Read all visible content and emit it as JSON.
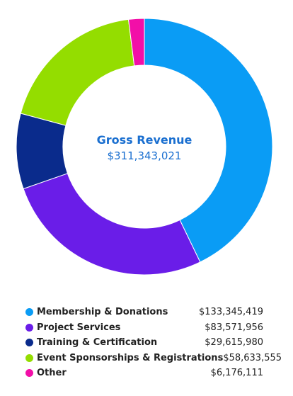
{
  "chart_data": {
    "type": "pie",
    "center": {
      "title": "Gross Revenue",
      "value": "$311,343,021"
    },
    "slices": [
      {
        "label": "Membership & Donations",
        "value": 133345419,
        "display": "$133,345,419",
        "color": "#0a9cf5"
      },
      {
        "label": "Project Services",
        "value": 83571956,
        "display": "$83,571,956",
        "color": "#6a1de8"
      },
      {
        "label": "Training & Certification",
        "value": 29615980,
        "display": "$29,615,980",
        "color": "#0a2b8c"
      },
      {
        "label": "Event Sponsorships & Registrations",
        "value": 58633555,
        "display": "$58,633,555",
        "color": "#94dd00"
      },
      {
        "label": "Other",
        "value": 6176111,
        "display": "$6,176,111",
        "color": "#f20fa8"
      }
    ],
    "legend_placement": "bottom",
    "title_color": "#1a6fd0"
  }
}
